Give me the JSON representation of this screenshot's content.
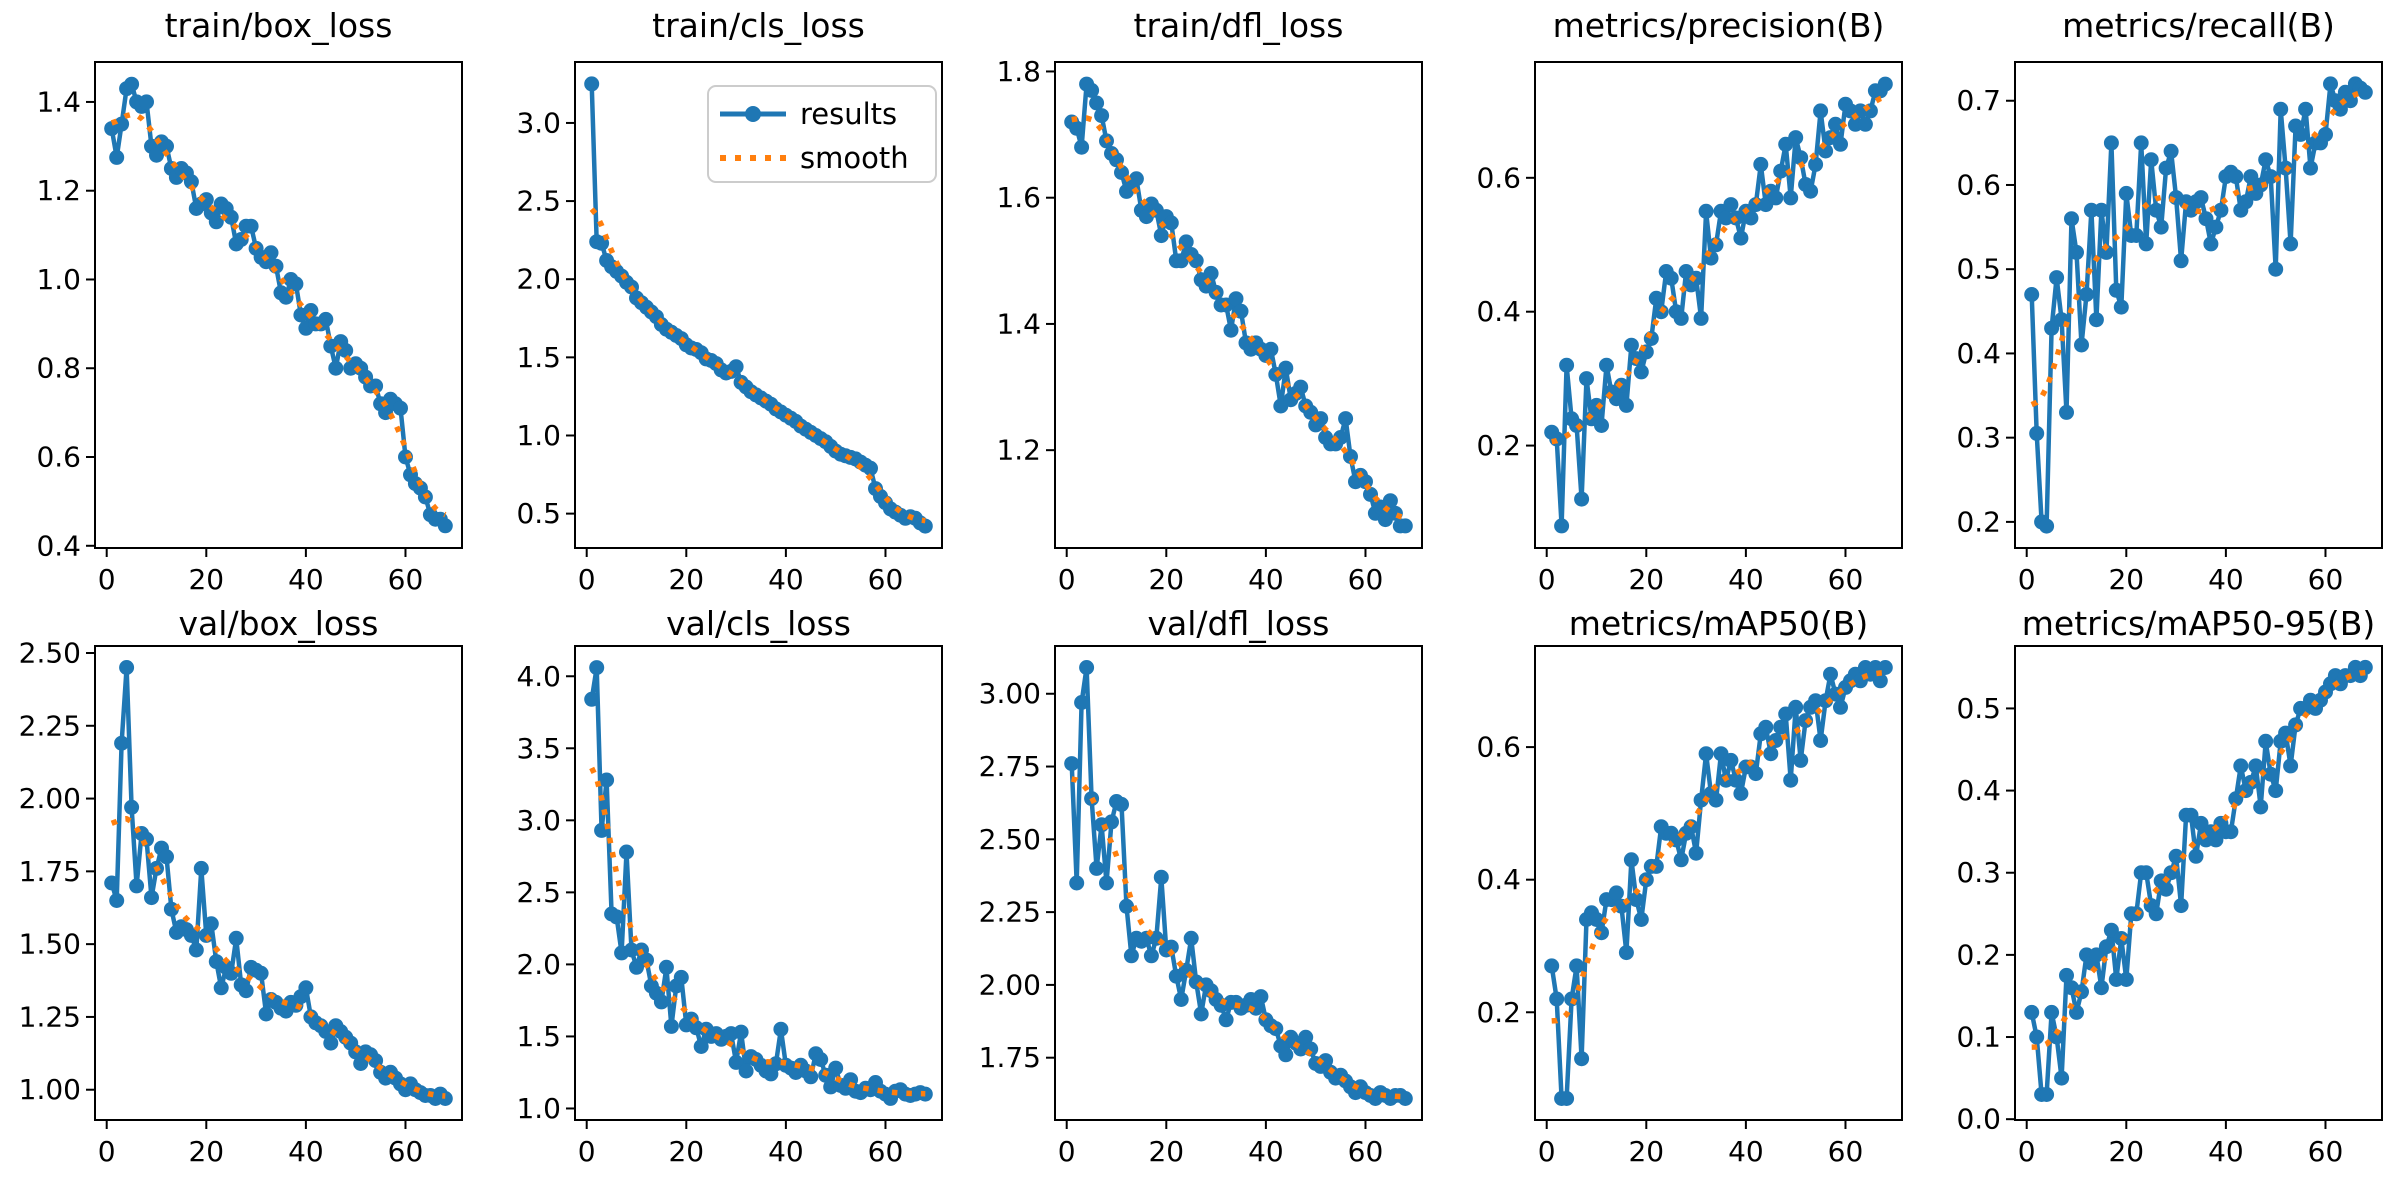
{
  "colors": {
    "results_line": "#1f77b4",
    "smooth_line": "#ff7f0e",
    "axis": "#000000",
    "tick_text": "#000000",
    "legend_border": "#cccccc",
    "background": "#ffffff"
  },
  "legend": {
    "entries": [
      "results",
      "smooth"
    ],
    "position": "upper right",
    "host_chart": "train/cls_loss"
  },
  "chart_data": [
    {
      "type": "line",
      "title": "train/box_loss",
      "xlabel": "",
      "ylabel": "",
      "x_start": 1,
      "xticks": [
        0,
        20,
        40,
        60
      ],
      "xlim": [
        -2.35,
        71.35
      ],
      "yticks": [
        "0.4",
        "0.6",
        "0.8",
        "1.0",
        "1.2",
        "1.4"
      ],
      "ylim": [
        0.395,
        1.49
      ],
      "grid": false,
      "legend": false,
      "smooth": "gaussian_sigma_3",
      "values": [
        1.34,
        1.275,
        1.35,
        1.43,
        1.44,
        1.4,
        1.39,
        1.4,
        1.3,
        1.28,
        1.31,
        1.3,
        1.25,
        1.23,
        1.25,
        1.24,
        1.22,
        1.16,
        1.17,
        1.18,
        1.15,
        1.13,
        1.17,
        1.16,
        1.14,
        1.08,
        1.09,
        1.12,
        1.12,
        1.07,
        1.05,
        1.04,
        1.06,
        1.03,
        0.97,
        0.96,
        1.0,
        0.99,
        0.92,
        0.89,
        0.93,
        0.9,
        0.9,
        0.91,
        0.85,
        0.8,
        0.86,
        0.84,
        0.8,
        0.81,
        0.8,
        0.78,
        0.76,
        0.76,
        0.72,
        0.7,
        0.73,
        0.72,
        0.71,
        0.6,
        0.56,
        0.54,
        0.53,
        0.51,
        0.47,
        0.46,
        0.46,
        0.445
      ]
    },
    {
      "type": "line",
      "title": "train/cls_loss",
      "xlabel": "",
      "ylabel": "",
      "x_start": 1,
      "xticks": [
        0,
        20,
        40,
        60
      ],
      "xlim": [
        -2.35,
        71.35
      ],
      "yticks": [
        "0.5",
        "1.0",
        "1.5",
        "2.0",
        "2.5",
        "3.0"
      ],
      "ylim": [
        0.28,
        3.39
      ],
      "grid": false,
      "legend": true,
      "smooth": "gaussian_sigma_3",
      "values": [
        3.25,
        2.24,
        2.23,
        2.12,
        2.08,
        2.05,
        2.02,
        1.98,
        1.95,
        1.88,
        1.85,
        1.82,
        1.79,
        1.76,
        1.71,
        1.68,
        1.66,
        1.64,
        1.62,
        1.58,
        1.56,
        1.55,
        1.53,
        1.49,
        1.48,
        1.46,
        1.42,
        1.4,
        1.41,
        1.44,
        1.34,
        1.31,
        1.28,
        1.26,
        1.24,
        1.22,
        1.2,
        1.17,
        1.15,
        1.13,
        1.11,
        1.09,
        1.06,
        1.04,
        1.02,
        1.0,
        0.98,
        0.96,
        0.93,
        0.9,
        0.88,
        0.87,
        0.86,
        0.85,
        0.83,
        0.81,
        0.79,
        0.66,
        0.61,
        0.57,
        0.53,
        0.51,
        0.49,
        0.47,
        0.48,
        0.47,
        0.44,
        0.42
      ]
    },
    {
      "type": "line",
      "title": "train/dfl_loss",
      "xlabel": "",
      "ylabel": "",
      "x_start": 1,
      "xticks": [
        0,
        20,
        40,
        60
      ],
      "xlim": [
        -2.35,
        71.35
      ],
      "yticks": [
        "1.2",
        "1.4",
        "1.6",
        "1.8"
      ],
      "ylim": [
        1.045,
        1.815
      ],
      "grid": false,
      "legend": false,
      "smooth": "gaussian_sigma_3",
      "values": [
        1.72,
        1.71,
        1.68,
        1.78,
        1.77,
        1.75,
        1.73,
        1.69,
        1.67,
        1.66,
        1.64,
        1.61,
        1.62,
        1.63,
        1.58,
        1.57,
        1.59,
        1.58,
        1.54,
        1.57,
        1.56,
        1.5,
        1.5,
        1.53,
        1.51,
        1.5,
        1.47,
        1.46,
        1.48,
        1.45,
        1.43,
        1.43,
        1.39,
        1.44,
        1.42,
        1.37,
        1.36,
        1.37,
        1.36,
        1.35,
        1.36,
        1.32,
        1.27,
        1.33,
        1.28,
        1.29,
        1.3,
        1.27,
        1.26,
        1.24,
        1.25,
        1.22,
        1.21,
        1.21,
        1.22,
        1.25,
        1.19,
        1.15,
        1.16,
        1.15,
        1.13,
        1.1,
        1.11,
        1.09,
        1.12,
        1.1,
        1.08,
        1.08
      ]
    },
    {
      "type": "line",
      "title": "metrics/precision(B)",
      "xlabel": "",
      "ylabel": "",
      "x_start": 1,
      "xticks": [
        0,
        20,
        40,
        60
      ],
      "xlim": [
        -2.35,
        71.35
      ],
      "yticks": [
        "0.2",
        "0.4",
        "0.6"
      ],
      "ylim": [
        0.047,
        0.773
      ],
      "grid": false,
      "legend": false,
      "smooth": "gaussian_sigma_3",
      "values": [
        0.22,
        0.21,
        0.08,
        0.32,
        0.24,
        0.23,
        0.12,
        0.3,
        0.24,
        0.26,
        0.23,
        0.32,
        0.28,
        0.27,
        0.29,
        0.26,
        0.35,
        0.33,
        0.31,
        0.34,
        0.36,
        0.42,
        0.4,
        0.46,
        0.45,
        0.4,
        0.39,
        0.46,
        0.44,
        0.45,
        0.39,
        0.55,
        0.48,
        0.5,
        0.55,
        0.54,
        0.56,
        0.54,
        0.51,
        0.55,
        0.54,
        0.56,
        0.62,
        0.56,
        0.58,
        0.57,
        0.61,
        0.65,
        0.57,
        0.66,
        0.63,
        0.59,
        0.58,
        0.62,
        0.7,
        0.64,
        0.66,
        0.68,
        0.65,
        0.71,
        0.7,
        0.68,
        0.7,
        0.68,
        0.7,
        0.73,
        0.73,
        0.74
      ]
    },
    {
      "type": "line",
      "title": "metrics/recall(B)",
      "xlabel": "",
      "ylabel": "",
      "x_start": 1,
      "xticks": [
        0,
        20,
        40,
        60
      ],
      "xlim": [
        -2.35,
        71.35
      ],
      "yticks": [
        "0.2",
        "0.3",
        "0.4",
        "0.5",
        "0.6",
        "0.7"
      ],
      "ylim": [
        0.169,
        0.746
      ],
      "grid": false,
      "legend": false,
      "smooth": "gaussian_sigma_3",
      "values": [
        0.47,
        0.305,
        0.2,
        0.195,
        0.43,
        0.49,
        0.44,
        0.33,
        0.56,
        0.52,
        0.41,
        0.47,
        0.57,
        0.44,
        0.57,
        0.52,
        0.65,
        0.475,
        0.455,
        0.59,
        0.54,
        0.54,
        0.65,
        0.53,
        0.63,
        0.57,
        0.55,
        0.62,
        0.64,
        0.585,
        0.51,
        0.58,
        0.57,
        0.58,
        0.585,
        0.56,
        0.53,
        0.55,
        0.57,
        0.61,
        0.615,
        0.61,
        0.57,
        0.58,
        0.61,
        0.59,
        0.6,
        0.63,
        0.61,
        0.5,
        0.69,
        0.62,
        0.53,
        0.67,
        0.66,
        0.69,
        0.62,
        0.65,
        0.65,
        0.66,
        0.72,
        0.7,
        0.69,
        0.71,
        0.7,
        0.72,
        0.715,
        0.71
      ]
    },
    {
      "type": "line",
      "title": "val/box_loss",
      "xlabel": "",
      "ylabel": "",
      "x_start": 1,
      "xticks": [
        0,
        20,
        40,
        60
      ],
      "xlim": [
        -2.35,
        71.35
      ],
      "yticks": [
        "1.00",
        "1.25",
        "1.50",
        "1.75",
        "2.00",
        "2.25",
        "2.50"
      ],
      "ylim": [
        0.896,
        2.524
      ],
      "grid": false,
      "legend": false,
      "smooth": "gaussian_sigma_3",
      "values": [
        1.71,
        1.65,
        2.19,
        2.45,
        1.97,
        1.7,
        1.88,
        1.86,
        1.66,
        1.76,
        1.83,
        1.8,
        1.62,
        1.54,
        1.56,
        1.55,
        1.53,
        1.48,
        1.76,
        1.53,
        1.57,
        1.44,
        1.35,
        1.42,
        1.4,
        1.52,
        1.36,
        1.34,
        1.42,
        1.41,
        1.4,
        1.26,
        1.31,
        1.3,
        1.28,
        1.27,
        1.3,
        1.29,
        1.32,
        1.35,
        1.25,
        1.23,
        1.22,
        1.2,
        1.16,
        1.22,
        1.2,
        1.18,
        1.16,
        1.13,
        1.09,
        1.13,
        1.12,
        1.1,
        1.06,
        1.04,
        1.06,
        1.04,
        1.02,
        1.0,
        1.02,
        1.0,
        0.99,
        0.98,
        0.98,
        0.97,
        0.985,
        0.97
      ]
    },
    {
      "type": "line",
      "title": "val/cls_loss",
      "xlabel": "",
      "ylabel": "",
      "x_start": 1,
      "xticks": [
        0,
        20,
        40,
        60
      ],
      "xlim": [
        -2.35,
        71.35
      ],
      "yticks": [
        "1.0",
        "1.5",
        "2.0",
        "2.5",
        "3.0",
        "3.5",
        "4.0"
      ],
      "ylim": [
        0.92,
        4.21
      ],
      "grid": false,
      "legend": false,
      "smooth": "gaussian_sigma_3",
      "values": [
        3.84,
        4.06,
        2.93,
        3.28,
        2.35,
        2.33,
        2.08,
        2.78,
        2.1,
        1.98,
        2.1,
        2.03,
        1.85,
        1.8,
        1.74,
        1.98,
        1.57,
        1.85,
        1.91,
        1.58,
        1.62,
        1.56,
        1.43,
        1.55,
        1.5,
        1.52,
        1.48,
        1.5,
        1.52,
        1.32,
        1.53,
        1.26,
        1.36,
        1.34,
        1.3,
        1.26,
        1.24,
        1.31,
        1.55,
        1.3,
        1.28,
        1.25,
        1.3,
        1.26,
        1.22,
        1.38,
        1.34,
        1.23,
        1.15,
        1.28,
        1.16,
        1.14,
        1.2,
        1.12,
        1.11,
        1.14,
        1.13,
        1.18,
        1.12,
        1.1,
        1.07,
        1.12,
        1.13,
        1.1,
        1.09,
        1.1,
        1.11,
        1.1
      ]
    },
    {
      "type": "line",
      "title": "val/dfl_loss",
      "xlabel": "",
      "ylabel": "",
      "x_start": 1,
      "xticks": [
        0,
        20,
        40,
        60
      ],
      "xlim": [
        -2.35,
        71.35
      ],
      "yticks": [
        "1.75",
        "2.00",
        "2.25",
        "2.50",
        "2.75",
        "3.00"
      ],
      "ylim": [
        1.536,
        3.164
      ],
      "grid": false,
      "legend": false,
      "smooth": "gaussian_sigma_3",
      "values": [
        2.76,
        2.35,
        2.97,
        3.09,
        2.64,
        2.4,
        2.55,
        2.35,
        2.56,
        2.63,
        2.62,
        2.27,
        2.1,
        2.16,
        2.15,
        2.16,
        2.1,
        2.16,
        2.37,
        2.12,
        2.13,
        2.03,
        1.95,
        2.05,
        2.16,
        2.01,
        1.9,
        2.0,
        1.98,
        1.95,
        1.93,
        1.88,
        1.94,
        1.94,
        1.92,
        1.93,
        1.95,
        1.92,
        1.96,
        1.88,
        1.86,
        1.85,
        1.79,
        1.76,
        1.82,
        1.8,
        1.78,
        1.82,
        1.78,
        1.73,
        1.72,
        1.74,
        1.7,
        1.68,
        1.69,
        1.67,
        1.65,
        1.63,
        1.65,
        1.63,
        1.62,
        1.61,
        1.63,
        1.62,
        1.61,
        1.62,
        1.62,
        1.61
      ]
    },
    {
      "type": "line",
      "title": "metrics/mAP50(B)",
      "xlabel": "",
      "ylabel": "",
      "x_start": 1,
      "xticks": [
        0,
        20,
        40,
        60
      ],
      "xlim": [
        -2.35,
        71.35
      ],
      "yticks": [
        "0.2",
        "0.4",
        "0.6"
      ],
      "ylim": [
        0.0375,
        0.7525
      ],
      "grid": false,
      "legend": false,
      "smooth": "gaussian_sigma_3",
      "values": [
        0.27,
        0.22,
        0.07,
        0.07,
        0.22,
        0.27,
        0.13,
        0.34,
        0.35,
        0.34,
        0.32,
        0.37,
        0.37,
        0.38,
        0.36,
        0.29,
        0.43,
        0.37,
        0.34,
        0.4,
        0.42,
        0.42,
        0.48,
        0.47,
        0.47,
        0.46,
        0.43,
        0.47,
        0.48,
        0.44,
        0.52,
        0.59,
        0.53,
        0.52,
        0.59,
        0.55,
        0.58,
        0.55,
        0.53,
        0.57,
        0.57,
        0.56,
        0.62,
        0.63,
        0.59,
        0.61,
        0.63,
        0.65,
        0.55,
        0.66,
        0.58,
        0.64,
        0.66,
        0.67,
        0.61,
        0.67,
        0.71,
        0.68,
        0.66,
        0.69,
        0.7,
        0.71,
        0.7,
        0.72,
        0.71,
        0.72,
        0.7,
        0.72
      ]
    },
    {
      "type": "line",
      "title": "metrics/mAP50-95(B)",
      "xlabel": "",
      "ylabel": "",
      "x_start": 1,
      "xticks": [
        0,
        20,
        40,
        60
      ],
      "xlim": [
        -2.35,
        71.35
      ],
      "yticks": [
        "0.0",
        "0.1",
        "0.2",
        "0.3",
        "0.4",
        "0.5"
      ],
      "ylim": [
        -0.001,
        0.576
      ],
      "grid": false,
      "legend": false,
      "smooth": "gaussian_sigma_3",
      "values": [
        0.13,
        0.1,
        0.03,
        0.03,
        0.13,
        0.1,
        0.05,
        0.175,
        0.16,
        0.13,
        0.155,
        0.2,
        0.19,
        0.2,
        0.16,
        0.21,
        0.23,
        0.17,
        0.22,
        0.17,
        0.25,
        0.25,
        0.3,
        0.3,
        0.26,
        0.25,
        0.29,
        0.28,
        0.3,
        0.32,
        0.26,
        0.37,
        0.37,
        0.32,
        0.36,
        0.34,
        0.35,
        0.34,
        0.36,
        0.35,
        0.35,
        0.39,
        0.43,
        0.4,
        0.41,
        0.43,
        0.38,
        0.46,
        0.42,
        0.4,
        0.46,
        0.47,
        0.43,
        0.48,
        0.5,
        0.5,
        0.51,
        0.5,
        0.51,
        0.52,
        0.53,
        0.54,
        0.53,
        0.54,
        0.54,
        0.55,
        0.54,
        0.55
      ]
    }
  ]
}
